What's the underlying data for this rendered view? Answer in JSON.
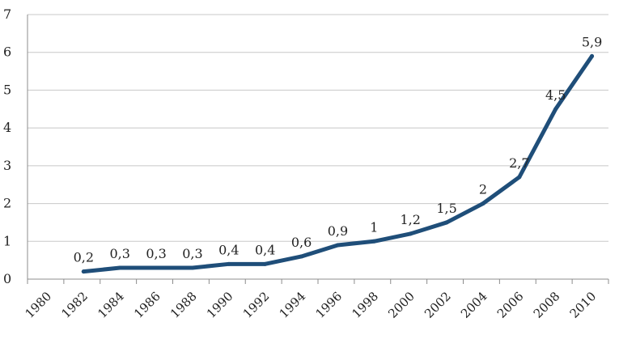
{
  "chart_data": {
    "type": "line",
    "title": "",
    "xlabel": "",
    "ylabel": "",
    "ylim": [
      0,
      7
    ],
    "y_ticks": [
      "0",
      "1",
      "2",
      "3",
      "4",
      "5",
      "6",
      "7"
    ],
    "x_ticks": [
      "1980",
      "1982",
      "1984",
      "1986",
      "1988",
      "1990",
      "1992",
      "1994",
      "1996",
      "1998",
      "2000",
      "2002",
      "2004",
      "2006",
      "2008",
      "2010"
    ],
    "grid": true,
    "legend": "none",
    "series": [
      {
        "color": "#1f4e79",
        "x": [
          "1982",
          "1984",
          "1986",
          "1988",
          "1990",
          "1992",
          "1994",
          "1996",
          "1998",
          "2000",
          "2002",
          "2004",
          "2006",
          "2008",
          "2010"
        ],
        "values": [
          0.2,
          0.3,
          0.3,
          0.3,
          0.4,
          0.4,
          0.6,
          0.9,
          1,
          1.2,
          1.5,
          2,
          2.7,
          4.5,
          5.9
        ],
        "labels": [
          "0,2",
          "0,3",
          "0,3",
          "0,3",
          "0,4",
          "0,4",
          "0,6",
          "0,9",
          "1",
          "1,2",
          "1,5",
          "2",
          "2,7",
          "4,5",
          "5,9"
        ]
      }
    ]
  }
}
